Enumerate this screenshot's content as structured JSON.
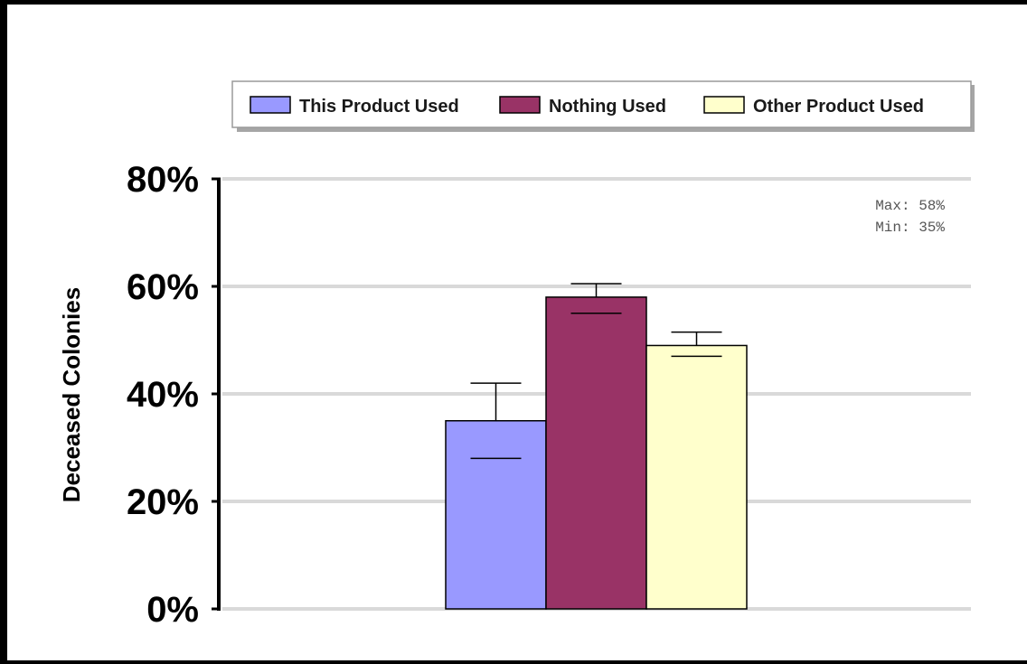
{
  "chart_data": {
    "type": "bar",
    "title": "",
    "xlabel": "",
    "ylabel": "Deceased Colonies",
    "ylim": [
      0,
      80
    ],
    "yticks": [
      0,
      20,
      40,
      60,
      80
    ],
    "ytick_labels": [
      "0%",
      "20%",
      "40%",
      "60%",
      "80%"
    ],
    "grid": true,
    "legend_placement": "top",
    "series": [
      {
        "name": "This Product Used",
        "value": 35,
        "error_low": 28,
        "error_high": 42,
        "color": "#9999ff"
      },
      {
        "name": "Nothing Used",
        "value": 58,
        "error_low": 55,
        "error_high": 60.5,
        "color": "#993366"
      },
      {
        "name": "Other Product Used",
        "value": 49,
        "error_low": 47,
        "error_high": 51.5,
        "color": "#ffffcc"
      }
    ],
    "annotations": {
      "max_label": "Max: 58%",
      "min_label": "Min: 35%"
    }
  }
}
